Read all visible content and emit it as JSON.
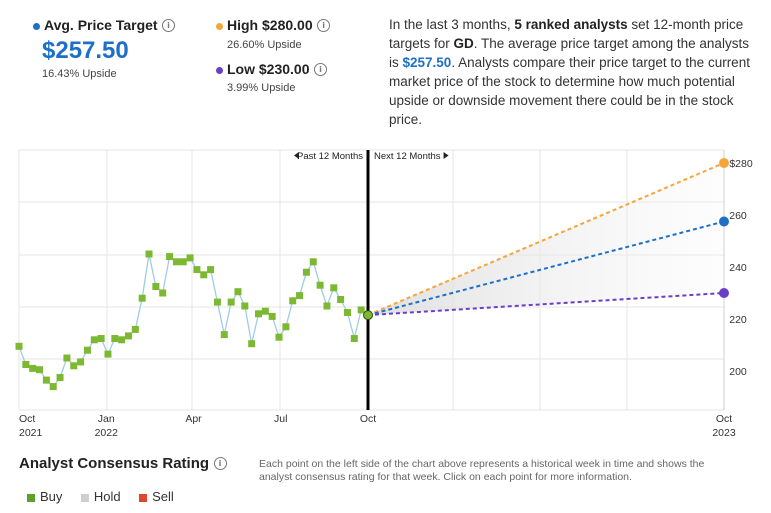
{
  "summary": {
    "avg": {
      "label": "Avg. Price Target",
      "value": "$257.50",
      "upside": "16.43% Upside",
      "color": "#1d6fc7"
    },
    "high": {
      "label": "High $280.00",
      "upside": "26.60% Upside",
      "color": "#f5a53a"
    },
    "low": {
      "label": "Low $230.00",
      "upside": "3.99% Upside",
      "color": "#6a3fc8"
    },
    "description": {
      "p1": "In the last 3 months, ",
      "b1": "5 ranked analysts",
      "p2": " set 12-month price targets for ",
      "b2": "GD",
      "p3": ". The average price target among the analysts is ",
      "b3": "$257.50",
      "p4": ". Analysts compare their price target to the current market price of the stock to determine how much potential upside or downside movement there could be in the stock price."
    }
  },
  "chart_data": {
    "type": "line",
    "y_axis": {
      "range": [
        185,
        285
      ],
      "ticks": [
        200,
        220,
        240,
        260
      ],
      "top_label": "$280"
    },
    "x_labels": [
      {
        "month": "Oct",
        "year": "2021",
        "week": 0
      },
      {
        "month": "Jan",
        "year": "2022",
        "week": 13
      },
      {
        "month": "Apr",
        "year": "",
        "week": 26
      },
      {
        "month": "Jul",
        "year": "",
        "week": 39
      },
      {
        "month": "Oct",
        "year": "",
        "week": 52
      },
      {
        "month": "Oct",
        "year": "2023",
        "week": 104
      }
    ],
    "past_label": "Past 12 Months",
    "next_label": "Next 12 Months",
    "price_series": {
      "name": "Price",
      "color": "#7cb832",
      "values": [
        209.5,
        202.5,
        201,
        200.5,
        196.5,
        194,
        197.5,
        205,
        202,
        203.5,
        208,
        212,
        212.5,
        206.5,
        212.5,
        212,
        213.5,
        216,
        228,
        245,
        232.5,
        230,
        244,
        242,
        242,
        243.5,
        239,
        237,
        239,
        226.5,
        214,
        226.5,
        230.5,
        225,
        210.5,
        222,
        223,
        221,
        213,
        217,
        227,
        229,
        238,
        242,
        233,
        225,
        232,
        227.5,
        222.5,
        212.5,
        223.5,
        221.5
      ]
    },
    "targets": [
      {
        "name": "High",
        "value": 280,
        "color": "#f5a53a"
      },
      {
        "name": "Average",
        "value": 257.5,
        "color": "#1d6fc7"
      },
      {
        "name": "Low",
        "value": 230,
        "color": "#6a3fc8"
      }
    ],
    "current_price": 221.5
  },
  "consensus": {
    "title": "Analyst Consensus Rating",
    "note": "Each point on the left side of the chart above represents a historical week in time and shows the analyst consensus rating for that week. Click on each point for more information.",
    "legend": [
      {
        "label": "Buy",
        "color": "#5da02b"
      },
      {
        "label": "Hold",
        "color": "#cfcfcf"
      },
      {
        "label": "Sell",
        "color": "#e0462a"
      }
    ]
  }
}
